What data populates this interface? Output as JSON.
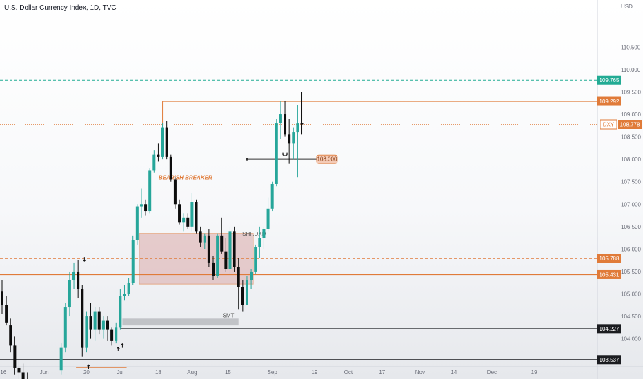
{
  "header": {
    "title": "U.S. Dollar Currency Index, 1D, TVC"
  },
  "colors": {
    "up": "#26a69a",
    "down": "#0d0d0d",
    "orange": "#e07b39",
    "teal": "#22ab94",
    "breaker_fill": "#d9a8a8",
    "smt_fill": "#b7b8bd",
    "dark_line": "#1b1c20"
  },
  "chart_data": {
    "type": "candlestick",
    "currency": "USD",
    "ylim": [
      103.38,
      111.55
    ],
    "y_ticks": [
      "110.500",
      "110.000",
      "109.500",
      "109.000",
      "108.500",
      "108.000",
      "107.500",
      "107.000",
      "106.500",
      "106.000",
      "105.500",
      "105.000",
      "104.500",
      "104.000"
    ],
    "x_ticks": [
      {
        "label": "16",
        "x": 0.3
      },
      {
        "label": "Jun",
        "x": 10
      },
      {
        "label": "20",
        "x": 20
      },
      {
        "label": "Jul",
        "x": 28
      },
      {
        "label": "18",
        "x": 37
      },
      {
        "label": "Aug",
        "x": 45
      },
      {
        "label": "15",
        "x": 53.5
      },
      {
        "label": "Sep",
        "x": 64
      },
      {
        "label": "19",
        "x": 74
      },
      {
        "label": "Oct",
        "x": 82
      },
      {
        "label": "17",
        "x": 90
      },
      {
        "label": "Nov",
        "x": 99
      },
      {
        "label": "14",
        "x": 107
      },
      {
        "label": "Dec",
        "x": 116
      },
      {
        "label": "19",
        "x": 126
      }
    ],
    "candles": [
      [
        0,
        105.05,
        105.3,
        104.55,
        104.75
      ],
      [
        1,
        104.75,
        104.95,
        104.3,
        104.35
      ],
      [
        2,
        104.3,
        104.45,
        103.7,
        103.85
      ],
      [
        3,
        103.85,
        104.05,
        103.2,
        103.35
      ],
      [
        4,
        103.35,
        103.55,
        103.0,
        103.25
      ],
      [
        5,
        103.25,
        103.45,
        102.85,
        103.05
      ],
      [
        6,
        103.05,
        103.25,
        102.7,
        102.9
      ],
      [
        14,
        103.3,
        103.9,
        103.2,
        103.8
      ],
      [
        15,
        103.8,
        104.8,
        103.7,
        104.7
      ],
      [
        16,
        104.7,
        105.5,
        104.5,
        105.3
      ],
      [
        17,
        105.3,
        105.7,
        105.1,
        105.5
      ],
      [
        18,
        105.5,
        105.75,
        104.9,
        105.1
      ],
      [
        19,
        105.1,
        105.2,
        103.6,
        103.8
      ],
      [
        20,
        103.8,
        104.6,
        103.7,
        104.5
      ],
      [
        21,
        104.5,
        104.8,
        104.0,
        104.2
      ],
      [
        22,
        104.2,
        104.7,
        103.95,
        104.6
      ],
      [
        23,
        104.6,
        104.7,
        104.1,
        104.2
      ],
      [
        24,
        104.2,
        104.5,
        104.0,
        104.4
      ],
      [
        25,
        104.4,
        104.5,
        103.95,
        104.2
      ],
      [
        26,
        104.2,
        104.25,
        103.85,
        103.95
      ],
      [
        27,
        103.95,
        104.35,
        103.9,
        104.25
      ],
      [
        28,
        104.25,
        105.1,
        104.2,
        104.95
      ],
      [
        29,
        104.95,
        105.2,
        104.85,
        105.0
      ],
      [
        30,
        105.0,
        105.35,
        104.95,
        105.25
      ],
      [
        31,
        105.25,
        106.3,
        105.2,
        106.2
      ],
      [
        32,
        106.2,
        107.0,
        106.1,
        106.95
      ],
      [
        33,
        106.95,
        107.35,
        106.7,
        107.0
      ],
      [
        34,
        107.0,
        107.1,
        106.75,
        106.85
      ],
      [
        35,
        106.85,
        107.8,
        106.8,
        107.75
      ],
      [
        36,
        107.75,
        108.2,
        107.7,
        108.1
      ],
      [
        37,
        108.1,
        108.35,
        107.95,
        108.05
      ],
      [
        38,
        108.05,
        108.8,
        108.0,
        108.7
      ],
      [
        39,
        108.7,
        108.85,
        108.0,
        108.05
      ],
      [
        40,
        108.05,
        108.1,
        107.5,
        107.55
      ],
      [
        41,
        107.55,
        107.6,
        106.9,
        107.0
      ],
      [
        42,
        107.0,
        107.1,
        106.55,
        106.6
      ],
      [
        43,
        106.6,
        106.8,
        106.4,
        106.7
      ],
      [
        44,
        106.7,
        106.8,
        106.45,
        106.5
      ],
      [
        45,
        106.5,
        107.25,
        106.4,
        107.05
      ],
      [
        46,
        107.05,
        107.1,
        106.35,
        106.4
      ],
      [
        47,
        106.4,
        106.5,
        106.05,
        106.15
      ],
      [
        48,
        106.15,
        106.35,
        106.0,
        106.3
      ],
      [
        49,
        106.3,
        106.45,
        105.6,
        105.7
      ],
      [
        50,
        105.7,
        105.85,
        105.3,
        105.4
      ],
      [
        51,
        105.4,
        106.35,
        105.35,
        106.3
      ],
      [
        52,
        106.3,
        106.7,
        105.9,
        105.95
      ],
      [
        53,
        105.95,
        106.25,
        105.5,
        105.55
      ],
      [
        54,
        105.55,
        106.5,
        105.45,
        106.4
      ],
      [
        55,
        106.4,
        106.5,
        105.5,
        105.6
      ],
      [
        56,
        105.6,
        105.8,
        104.65,
        105.15
      ],
      [
        57,
        105.15,
        105.3,
        104.6,
        104.75
      ],
      [
        58,
        104.75,
        105.4,
        104.75,
        105.3
      ],
      [
        59,
        105.3,
        105.55,
        105.1,
        105.5
      ],
      [
        60,
        105.5,
        106.1,
        105.45,
        106.05
      ],
      [
        61,
        106.05,
        106.5,
        105.8,
        106.25
      ],
      [
        62,
        106.25,
        106.5,
        106.0,
        106.45
      ],
      [
        63,
        106.45,
        107.15,
        106.4,
        106.9
      ],
      [
        64,
        106.9,
        107.5,
        106.85,
        107.45
      ],
      [
        65,
        107.45,
        108.9,
        107.4,
        108.8
      ],
      [
        66,
        108.8,
        109.3,
        108.45,
        109.0
      ],
      [
        67,
        109.0,
        109.3,
        108.5,
        108.55
      ],
      [
        68,
        108.55,
        108.9,
        107.9,
        108.35
      ],
      [
        69,
        108.35,
        108.7,
        108.0,
        108.6
      ],
      [
        70,
        108.6,
        109.2,
        107.6,
        108.8
      ],
      [
        71,
        108.8,
        109.5,
        108.55,
        108.78
      ]
    ],
    "series": [
      {
        "name": "DXY",
        "last": "108.778"
      }
    ],
    "levels": [
      {
        "label": "109.765",
        "value": 109.765,
        "style": "dash-teal"
      },
      {
        "label": "109.292",
        "value": 109.292,
        "style": "solid-orange",
        "from_x": 38
      },
      {
        "label": "105.788",
        "value": 105.788,
        "style": "dash-orange"
      },
      {
        "label": "105.431",
        "value": 105.431,
        "style": "solid-orange"
      },
      {
        "label": "104.227",
        "value": 104.227,
        "style": "solid-dark",
        "from_x": 28
      },
      {
        "label": "103.537",
        "value": 103.537,
        "style": "solid-dark"
      }
    ],
    "price_tag": {
      "series": "DXY",
      "label": "108.778",
      "value": 108.778
    },
    "annotations": {
      "bearish_breaker": {
        "text": "BEARISH BREAKER",
        "x0": 32.5,
        "x1": 59.5,
        "y_top": 106.35,
        "y_bot": 105.22
      },
      "smt": {
        "text": "SMT",
        "x0": 28.5,
        "x1": 56,
        "y_top": 104.45,
        "y_bot": 104.33,
        "label_x": 54.5,
        "label_y": 104.45
      },
      "strike_text": "SHF.DXD",
      "low_ray": {
        "x0": 17.5,
        "x1": 29.5,
        "value": 103.36
      },
      "ray_108": {
        "x0": 58,
        "x1": 74.5,
        "value": 108.0,
        "label": "108.000"
      },
      "arrows_down": [
        {
          "x": 19.5,
          "value": 105.82
        }
      ],
      "arrows_up": [
        {
          "x": 20.5,
          "value": 103.33
        },
        {
          "x": 27.5,
          "value": 103.72
        },
        {
          "x": 28.5,
          "value": 103.8
        }
      ],
      "cup_icon": {
        "x": 67,
        "value": 108.1
      }
    }
  }
}
